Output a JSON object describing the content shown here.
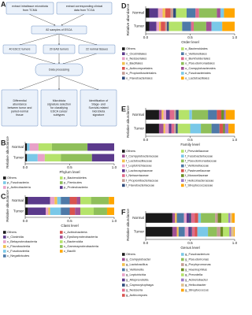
{
  "flowchart": {
    "panel": "A",
    "nodes": [
      {
        "lines": [
          "extract intratissue microbiota",
          "from TCMA"
        ]
      },
      {
        "lines": [
          "extract corresponding clinical",
          "data from TCGA"
        ]
      },
      {
        "lines": [
          "82 samples of ESCA"
        ]
      },
      {
        "lines": [
          "40 ESCC tumors"
        ]
      },
      {
        "lines": [
          "20 EAD tumors"
        ]
      },
      {
        "lines": [
          "22 normal tissues"
        ]
      },
      {
        "lines": [
          "Data processing"
        ]
      },
      {
        "lines": [
          "Differential",
          "abundance",
          "between tumor and",
          "paired-normal",
          "tissue"
        ]
      },
      {
        "lines": [
          "Microbiota",
          "signature selection",
          "for classifying",
          "ESCA cancer",
          "subtypes"
        ]
      },
      {
        "lines": [
          "Identification of",
          "Stage- and",
          "Survival-related",
          "microbiota",
          "signature"
        ]
      }
    ]
  },
  "chart_data": [
    {
      "type": "bar",
      "panel": "B",
      "ylabel": "Relative abundance",
      "xlabel": "Phylum level",
      "categories": [
        "Normal",
        "Tumor"
      ],
      "xlim": [
        0,
        1
      ],
      "xticks": [
        {
          "value": 0,
          "label": "0.0"
        },
        {
          "value": 0.5,
          "label": "0.5"
        },
        {
          "value": 1,
          "label": "1.0"
        }
      ],
      "series": [
        {
          "name": "Others",
          "color": "#1a1a1a",
          "values": [
            0.02,
            0.02
          ]
        },
        {
          "name": "p_Fusobacteria",
          "color": "#7ac8e8",
          "values": [
            0.03,
            0.12
          ]
        },
        {
          "name": "p_Actinobacteria",
          "color": "#e8a1c8",
          "values": [
            0.1,
            0.08
          ]
        },
        {
          "name": "p_Bacteroidetes",
          "color": "#b5e36b",
          "values": [
            0.15,
            0.18
          ]
        },
        {
          "name": "p_Firmicutes",
          "color": "#8fbf5a",
          "values": [
            0.4,
            0.35
          ]
        },
        {
          "name": "p_Proteobacteria",
          "color": "#5b3a8c",
          "values": [
            0.3,
            0.25
          ]
        }
      ]
    },
    {
      "type": "bar",
      "panel": "C",
      "ylabel": "Relative abundance",
      "xlabel": "Class level",
      "categories": [
        "Normal",
        "Tumor"
      ],
      "xlim": [
        0,
        1
      ],
      "xticks": [
        {
          "value": 0,
          "label": "0.0"
        },
        {
          "value": 0.5,
          "label": "0.5"
        },
        {
          "value": 1,
          "label": "1.0"
        }
      ],
      "series": [
        {
          "name": "Others",
          "color": "#1a1a1a",
          "values": [
            0.03,
            0.03
          ]
        },
        {
          "name": "c_Clostridia",
          "color": "#5b3a8c",
          "values": [
            0.25,
            0.2
          ]
        },
        {
          "name": "c_Betaproteobacteria",
          "color": "#e8a1c8",
          "values": [
            0.05,
            0.03
          ]
        },
        {
          "name": "c_Flavobacteriia",
          "color": "#f2c14e",
          "values": [
            0.03,
            0.02
          ]
        },
        {
          "name": "c_Fusobacteriia",
          "color": "#7ac8e8",
          "values": [
            0.04,
            0.12
          ]
        },
        {
          "name": "c_Negativicutes",
          "color": "#4e79a7",
          "values": [
            0.1,
            0.1
          ]
        },
        {
          "name": "c_Actinobacteria",
          "color": "#d9534f",
          "values": [
            0.08,
            0.06
          ]
        },
        {
          "name": "c_Epsilonproteobacteria",
          "color": "#a05195",
          "values": [
            0.04,
            0.06
          ]
        },
        {
          "name": "c_Bacteroidia",
          "color": "#b5e36b",
          "values": [
            0.12,
            0.15
          ]
        },
        {
          "name": "c_Gammaproteobacteria",
          "color": "#8fbf5a",
          "values": [
            0.2,
            0.15
          ]
        },
        {
          "name": "c_Bacilli",
          "color": "#ffa600",
          "values": [
            0.06,
            0.08
          ]
        }
      ]
    },
    {
      "type": "bar",
      "panel": "D",
      "ylabel": "Relative abundance",
      "xlabel": "Order level",
      "categories": [
        "Normal",
        "Tumor"
      ],
      "xlim": [
        0,
        1
      ],
      "xticks": [
        {
          "value": 0,
          "label": "0.0"
        },
        {
          "value": 0.5,
          "label": "0.5"
        },
        {
          "value": 1,
          "label": "1.0"
        }
      ],
      "series": [
        {
          "name": "Others",
          "color": "#1a1a1a",
          "values": [
            0.04,
            0.04
          ]
        },
        {
          "name": "o_Clostridiales",
          "color": "#5b3a8c",
          "values": [
            0.1,
            0.08
          ]
        },
        {
          "name": "o_Neisseriales",
          "color": "#e8a1c8",
          "values": [
            0.05,
            0.03
          ]
        },
        {
          "name": "o_Bacillales",
          "color": "#f2c14e",
          "values": [
            0.03,
            0.02
          ]
        },
        {
          "name": "o_Actinomycetales",
          "color": "#d9534f",
          "values": [
            0.06,
            0.05
          ]
        },
        {
          "name": "o_Propionibacteriales",
          "color": "#c49c94",
          "values": [
            0.03,
            0.02
          ]
        },
        {
          "name": "o_Flavobacteriales",
          "color": "#2f4b7c",
          "values": [
            0.03,
            0.02
          ]
        },
        {
          "name": "o_Bacteroidales",
          "color": "#b5e36b",
          "values": [
            0.12,
            0.15
          ]
        },
        {
          "name": "o_Veillonellales",
          "color": "#4e79a7",
          "values": [
            0.1,
            0.1
          ]
        },
        {
          "name": "o_Burkholderiales",
          "color": "#e06b8c",
          "values": [
            0.04,
            0.03
          ]
        },
        {
          "name": "o_Pseudomonadales",
          "color": "#8fbf5a",
          "values": [
            0.2,
            0.14
          ]
        },
        {
          "name": "o_Campylobacterales",
          "color": "#a05195",
          "values": [
            0.04,
            0.06
          ]
        },
        {
          "name": "o_Fusobacteriales",
          "color": "#7ac8e8",
          "values": [
            0.04,
            0.12
          ]
        },
        {
          "name": "o_Lactobacillales",
          "color": "#ffa600",
          "values": [
            0.12,
            0.14
          ]
        }
      ]
    },
    {
      "type": "bar",
      "panel": "E",
      "ylabel": "Relative abundance",
      "xlabel": "Family level",
      "categories": [
        "Normal",
        "Tumor"
      ],
      "xlim": [
        0,
        1
      ],
      "xticks": [
        {
          "value": 0,
          "label": "0.0"
        },
        {
          "value": 0.5,
          "label": "0.5"
        },
        {
          "value": 1,
          "label": "1.0"
        }
      ],
      "series": [
        {
          "name": "Others",
          "color": "#1a1a1a",
          "values": [
            0.15,
            0.15
          ]
        },
        {
          "name": "f_Campylobacteraceae",
          "color": "#a05195",
          "values": [
            0.03,
            0.05
          ]
        },
        {
          "name": "f_Lactobacillaceae",
          "color": "#f2c14e",
          "values": [
            0.02,
            0.02
          ]
        },
        {
          "name": "f_Leptotrichiaceae",
          "color": "#e8a1c8",
          "values": [
            0.03,
            0.04
          ]
        },
        {
          "name": "f_Lachnospiraceae",
          "color": "#5b3a8c",
          "values": [
            0.04,
            0.03
          ]
        },
        {
          "name": "f_Neisseriaceae",
          "color": "#e06b8c",
          "values": [
            0.05,
            0.03
          ]
        },
        {
          "name": "f_Propionibacteriaceae",
          "color": "#c49c94",
          "values": [
            0.02,
            0.02
          ]
        },
        {
          "name": "f_Flavobacteriaceae",
          "color": "#2f4b7c",
          "values": [
            0.03,
            0.02
          ]
        },
        {
          "name": "f_Prevotellaceae",
          "color": "#b5e36b",
          "values": [
            0.12,
            0.14
          ]
        },
        {
          "name": "f_Fusobacteriaceae",
          "color": "#7ac8e8",
          "values": [
            0.03,
            0.12
          ]
        },
        {
          "name": "f_Pseudomonadaceae",
          "color": "#8fbf5a",
          "values": [
            0.18,
            0.12
          ]
        },
        {
          "name": "f_Veillonellaceae",
          "color": "#4e79a7",
          "values": [
            0.1,
            0.09
          ]
        },
        {
          "name": "f_Pasteurellaceae",
          "color": "#d9534f",
          "values": [
            0.05,
            0.04
          ]
        },
        {
          "name": "f_Moraxellaceae",
          "color": "#6b8e23",
          "values": [
            0.03,
            0.02
          ]
        },
        {
          "name": "f_Helicobacteraceae",
          "color": "#9c7ac8",
          "values": [
            0.02,
            0.04
          ]
        },
        {
          "name": "f_Streptococcaceae",
          "color": "#ffa600",
          "values": [
            0.1,
            0.07
          ]
        }
      ]
    },
    {
      "type": "bar",
      "panel": "F",
      "ylabel": "Relative abundance",
      "xlabel": "Genus level",
      "categories": [
        "Normal",
        "Tumor"
      ],
      "xlim": [
        0,
        1
      ],
      "xticks": [
        {
          "value": 0,
          "label": "0.0"
        },
        {
          "value": 0.5,
          "label": "0.5"
        },
        {
          "value": 1,
          "label": "1.0"
        }
      ],
      "series": [
        {
          "name": "Others",
          "color": "#1a1a1a",
          "values": [
            0.3,
            0.3
          ]
        },
        {
          "name": "g_Campylobacter",
          "color": "#a05195",
          "values": [
            0.03,
            0.05
          ]
        },
        {
          "name": "g_Lactobacillus",
          "color": "#f2c14e",
          "values": [
            0.02,
            0.02
          ]
        },
        {
          "name": "g_Veillonella",
          "color": "#4e79a7",
          "values": [
            0.08,
            0.07
          ]
        },
        {
          "name": "g_Leptotrichia",
          "color": "#e8a1c8",
          "values": [
            0.03,
            0.04
          ]
        },
        {
          "name": "g_Alloprevotella",
          "color": "#5b3a8c",
          "values": [
            0.03,
            0.03
          ]
        },
        {
          "name": "g_Capnocytophaga",
          "color": "#2f4b7c",
          "values": [
            0.02,
            0.01
          ]
        },
        {
          "name": "g_Neisseria",
          "color": "#e06b8c",
          "values": [
            0.04,
            0.03
          ]
        },
        {
          "name": "g_Actinomyces",
          "color": "#d9534f",
          "values": [
            0.04,
            0.03
          ]
        },
        {
          "name": "g_Fusobacterium",
          "color": "#7ac8e8",
          "values": [
            0.03,
            0.12
          ]
        },
        {
          "name": "g_Pseudomonas",
          "color": "#8fbf5a",
          "values": [
            0.16,
            0.1
          ]
        },
        {
          "name": "g_Porphyromonas",
          "color": "#c49c94",
          "values": [
            0.03,
            0.04
          ]
        },
        {
          "name": "g_Haemophilus",
          "color": "#6b8e23",
          "values": [
            0.04,
            0.03
          ]
        },
        {
          "name": "g_Prevotella",
          "color": "#b5e36b",
          "values": [
            0.08,
            0.07
          ]
        },
        {
          "name": "g_Acinetobacter",
          "color": "#9c7ac8",
          "values": [
            0.02,
            0.02
          ]
        },
        {
          "name": "g_Helicobacter",
          "color": "#e0c08c",
          "values": [
            0.02,
            0.03
          ]
        },
        {
          "name": "g_Streptococcus",
          "color": "#ffa600",
          "values": [
            0.03,
            0.01
          ]
        }
      ]
    }
  ]
}
